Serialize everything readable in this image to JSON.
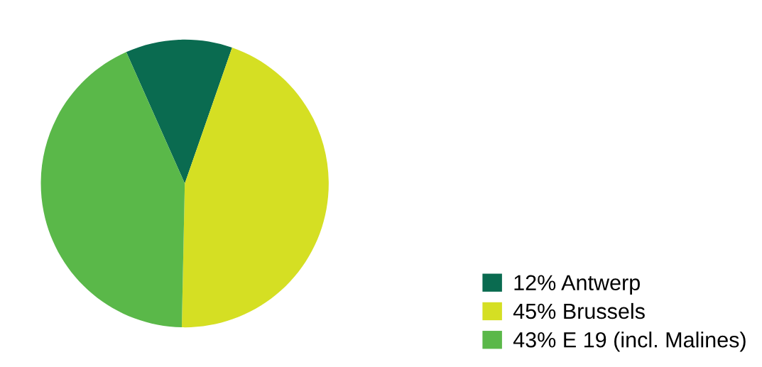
{
  "chart_data": {
    "type": "pie",
    "categories": [
      "Antwerp",
      "Brussels",
      "E 19 (incl. Malines)"
    ],
    "values": [
      12,
      45,
      43
    ],
    "value_labels": [
      "12%",
      "45%",
      "43%"
    ],
    "colors": [
      "#0a6b50",
      "#d5df23",
      "#5ab849"
    ],
    "legend": "bottom right"
  }
}
